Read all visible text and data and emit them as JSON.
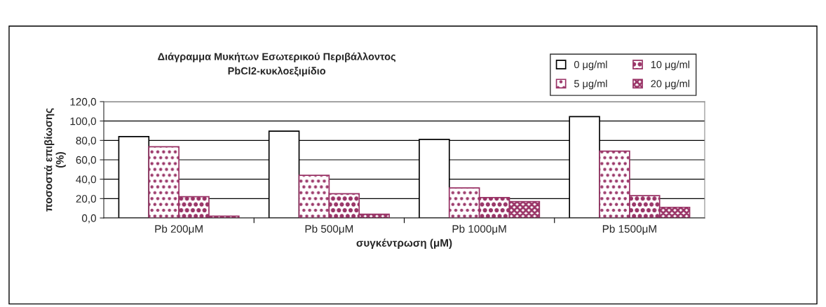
{
  "chart_data": {
    "type": "bar",
    "title": "Διάγραμμα Μυκήτων Εσωτερικού Περιβάλλοντος\nPbCl2-κυκλοεξιμίδιο",
    "xlabel": "συγκέντρωση (μM)",
    "ylabel": "ποσοστά επιβίωσης\n(%)",
    "categories": [
      "Pb 200μM",
      "Pb 500μM",
      "Pb 1000μM",
      "Pb 1500μM"
    ],
    "series": [
      {
        "name": "0 μg/ml",
        "color": "#ffffff",
        "values": [
          84,
          89.6,
          81,
          104.6
        ]
      },
      {
        "name": "5 μg/ml",
        "color": "#993366",
        "values": [
          73.5,
          44,
          31,
          69
        ]
      },
      {
        "name": "10 μg/ml",
        "color": "#993366",
        "values": [
          22,
          25,
          21,
          23
        ]
      },
      {
        "name": "20 μg/ml",
        "color": "#993366",
        "values": [
          2,
          4,
          17,
          11
        ]
      }
    ],
    "ylim": [
      0,
      120
    ],
    "yticks": [
      {
        "value": 0,
        "label": "0,0"
      },
      {
        "value": 20,
        "label": "20,0"
      },
      {
        "value": 40,
        "label": "40,0"
      },
      {
        "value": 60,
        "label": "60,0"
      },
      {
        "value": 80,
        "label": "80,0"
      },
      {
        "value": 100,
        "label": "100,0"
      },
      {
        "value": 120,
        "label": "120,0"
      }
    ],
    "grid": "y",
    "legend": "top right"
  }
}
